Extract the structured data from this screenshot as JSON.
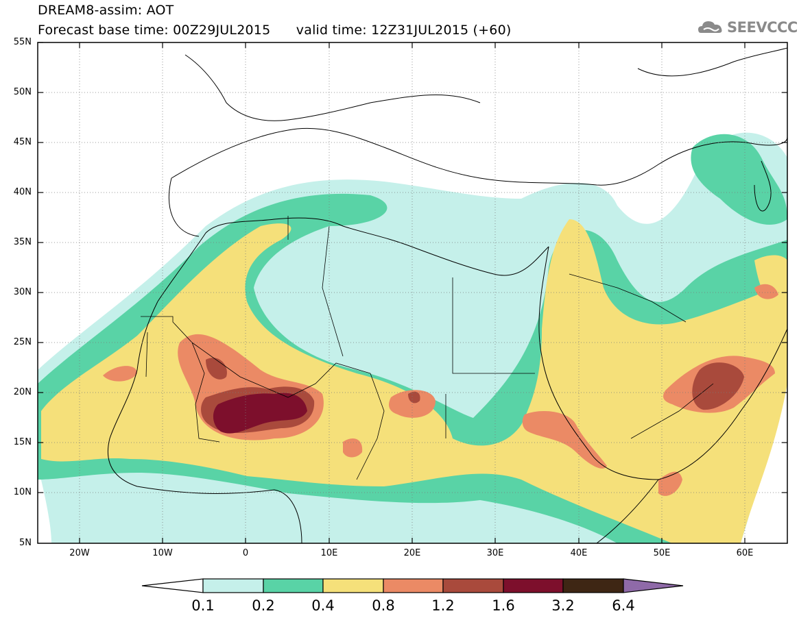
{
  "header": {
    "line1": "DREAM8-assim: AOT",
    "line2": "Forecast base time: 00Z29JUL2015      valid time: 12Z31JUL2015 (+60)"
  },
  "logo": {
    "text": "SEEVCCC",
    "icon": "cloud-icon",
    "color": "#8a8a8a"
  },
  "map": {
    "lat_labels": [
      "55N",
      "50N",
      "45N",
      "40N",
      "35N",
      "30N",
      "25N",
      "20N",
      "15N",
      "10N",
      "5N"
    ],
    "lon_labels": [
      "20W",
      "10W",
      "0",
      "10E",
      "20E",
      "30E",
      "40E",
      "50E",
      "60E"
    ],
    "lat_range": [
      5,
      55
    ],
    "lon_range": [
      -25,
      65
    ],
    "gridlines": "dotted"
  },
  "colorbar": {
    "labels": [
      "0.1",
      "0.2",
      "0.4",
      "0.8",
      "1.2",
      "1.6",
      "3.2",
      "6.4"
    ],
    "colors": [
      "#ffffff",
      "#c5f0ea",
      "#59d3a6",
      "#f5e07a",
      "#eb8a65",
      "#a94a3c",
      "#7d0f2c",
      "#3e2614",
      "#8f6aa8"
    ]
  }
}
